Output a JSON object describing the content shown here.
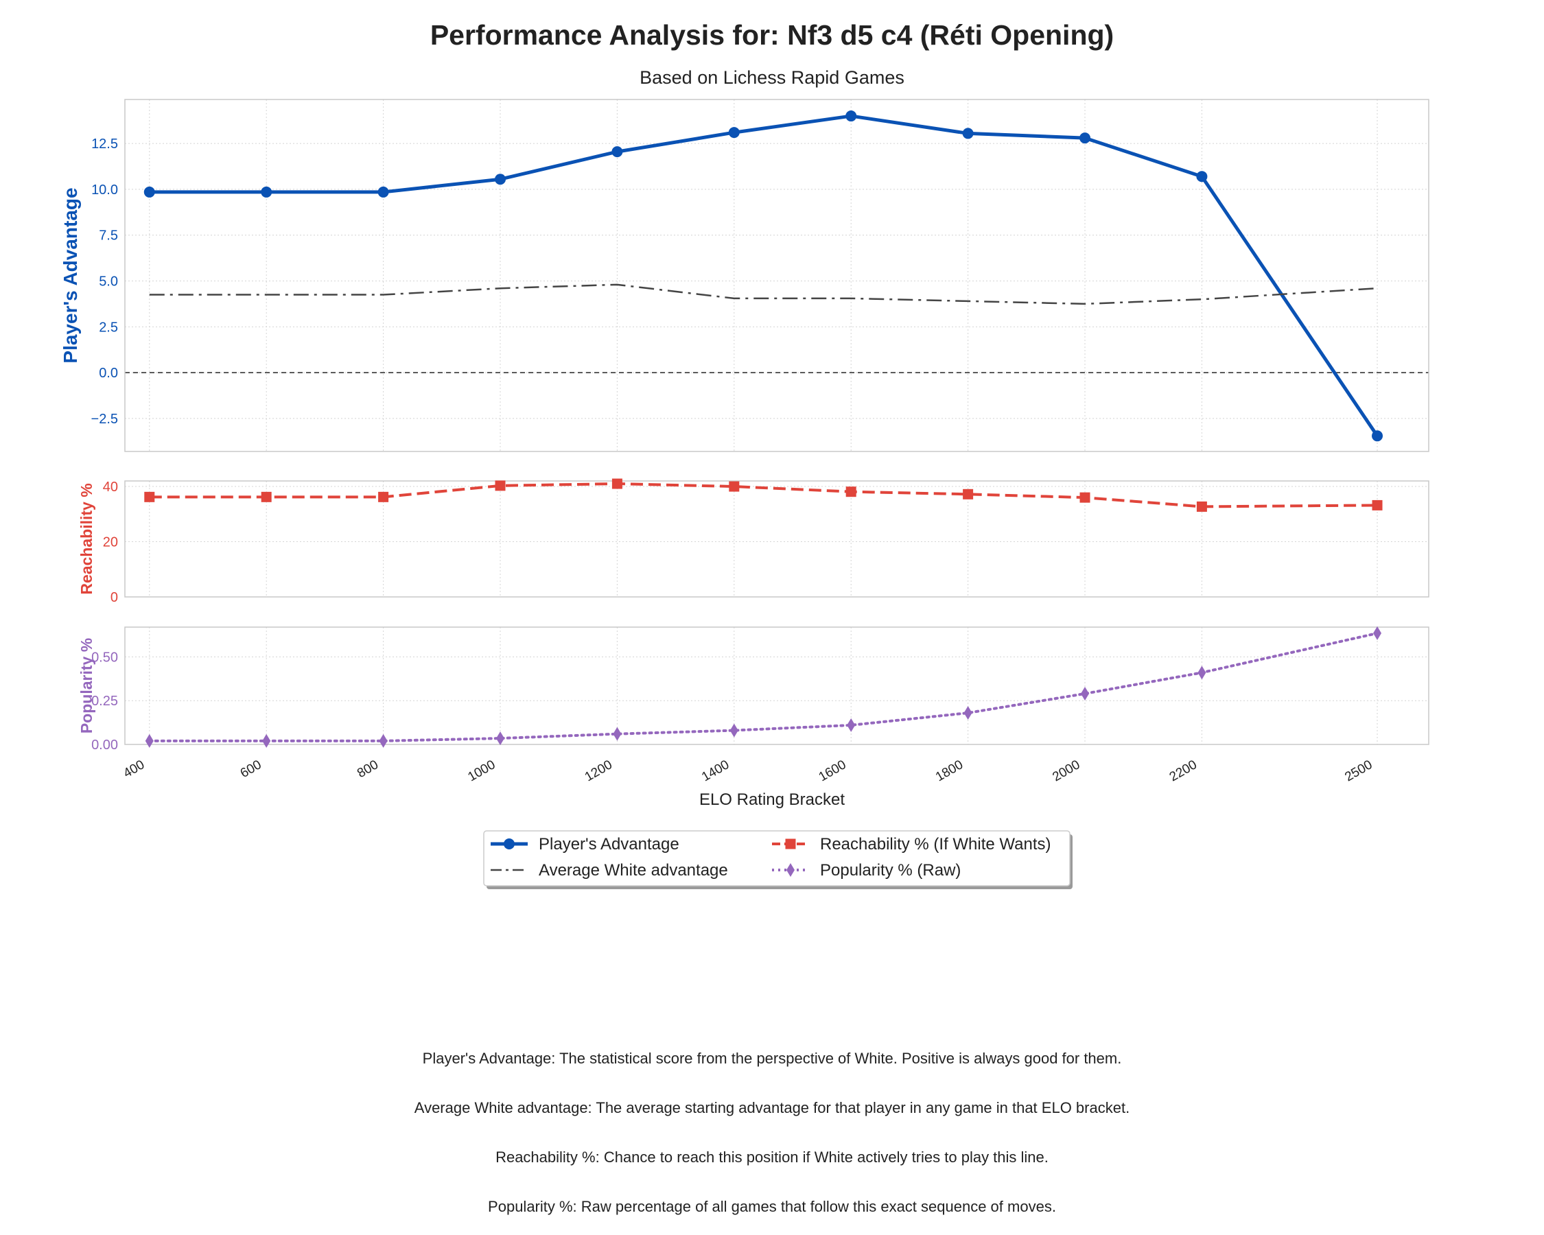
{
  "chart_data": {
    "type": "line",
    "title": "Performance Analysis for: Nf3 d5 c4 (Réti Opening)",
    "subtitle": "Based on Lichess Rapid Games",
    "xlabel": "ELO Rating Bracket",
    "x": [
      400,
      600,
      800,
      1000,
      1200,
      1400,
      1600,
      1800,
      2000,
      2200,
      2500
    ],
    "x_tick_labels": [
      "400",
      "600",
      "800",
      "1000",
      "1200",
      "1400",
      "1600",
      "1800",
      "2000",
      "2200",
      "2500"
    ],
    "grid": true,
    "legend_position": "bottom-center",
    "panels": [
      {
        "ylabel": "Player's Advantage",
        "ylabel_color": "#0a52b4",
        "ylim": [
          -4.3,
          14.9
        ],
        "yticks": [
          -2.5,
          0.0,
          2.5,
          5.0,
          7.5,
          10.0,
          12.5
        ],
        "ytick_labels": [
          "−2.5",
          "0.0",
          "2.5",
          "5.0",
          "7.5",
          "10.0",
          "12.5"
        ],
        "zero_line": true,
        "series": [
          {
            "name": "Player's Advantage",
            "color": "#0a52b4",
            "style": "solid",
            "marker": "circle",
            "values": [
              9.85,
              9.85,
              9.85,
              10.55,
              12.05,
              13.1,
              14.0,
              13.05,
              12.8,
              10.7,
              -3.45
            ]
          },
          {
            "name": "Average White advantage",
            "color": "#444444",
            "style": "dashdot",
            "marker": "none",
            "values": [
              4.25,
              4.25,
              4.25,
              4.6,
              4.8,
              4.05,
              4.05,
              3.9,
              3.75,
              4.0,
              4.6
            ]
          }
        ]
      },
      {
        "ylabel": "Reachability %",
        "ylabel_color": "#e0443a",
        "ylim": [
          0,
          42
        ],
        "yticks": [
          0,
          20,
          40
        ],
        "ytick_labels": [
          "0",
          "20",
          "40"
        ],
        "zero_line": false,
        "series": [
          {
            "name": "Reachability % (If White Wants)",
            "color": "#e0443a",
            "style": "dashed",
            "marker": "square",
            "values": [
              36.2,
              36.2,
              36.2,
              40.3,
              41.0,
              40.0,
              38.1,
              37.2,
              36.0,
              32.7,
              33.2
            ]
          }
        ]
      },
      {
        "ylabel": "Popularity %",
        "ylabel_color": "#9467bd",
        "ylim": [
          0,
          0.67
        ],
        "yticks": [
          0.0,
          0.25,
          0.5
        ],
        "ytick_labels": [
          "0.00",
          "0.25",
          "0.50"
        ],
        "zero_line": false,
        "series": [
          {
            "name": "Popularity % (Raw)",
            "color": "#9467bd",
            "style": "dotted",
            "marker": "diamond",
            "values": [
              0.02,
              0.02,
              0.02,
              0.035,
              0.06,
              0.08,
              0.11,
              0.18,
              0.29,
              0.41,
              0.635
            ]
          }
        ]
      }
    ],
    "footnotes": [
      "Player's Advantage: The statistical score from the perspective of White. Positive is always good for them.",
      "Average White advantage: The average starting advantage for that player in any game in that ELO bracket.",
      "Reachability %: Chance to reach this position if White actively tries to play this line.",
      "Popularity %: Raw percentage of all games that follow this exact sequence of moves."
    ]
  }
}
